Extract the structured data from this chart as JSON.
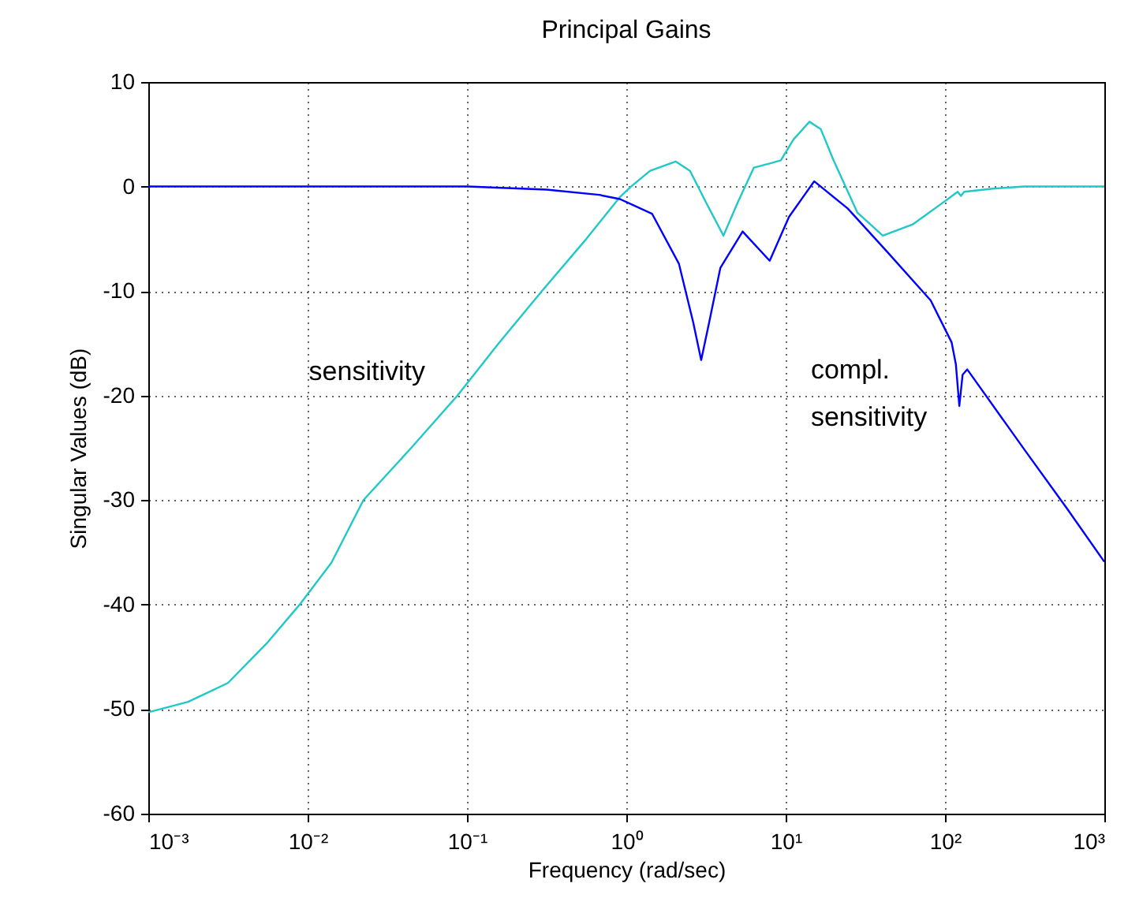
{
  "chart_data": {
    "type": "line",
    "title": "Principal Gains",
    "xlabel": "Frequency (rad/sec)",
    "ylabel": "Singular Values (dB)",
    "log": "x",
    "grid": true,
    "line_style": "solid",
    "marker": "none",
    "xlim": [
      0.001,
      1000
    ],
    "xticks": [
      {
        "value": 0.001,
        "label": "10⁻³"
      },
      {
        "value": 0.01,
        "label": "10⁻²"
      },
      {
        "value": 0.1,
        "label": "10⁻¹"
      },
      {
        "value": 1,
        "label": "10⁰"
      },
      {
        "value": 10,
        "label": "10¹"
      },
      {
        "value": 100,
        "label": "10²"
      },
      {
        "value": 1000,
        "label": "10³"
      }
    ],
    "ylim": [
      -60,
      10
    ],
    "yticks": [
      -60,
      -50,
      -40,
      -30,
      -20,
      -10,
      0,
      10
    ],
    "series": [
      {
        "color": "#20c8c8",
        "x": [
          0.001,
          0.00178,
          0.00316,
          0.00562,
          0.00891,
          0.0141,
          0.0224,
          0.0447,
          0.0871,
          0.158,
          0.295,
          0.562,
          0.912,
          1.07,
          1.41,
          2.04,
          2.51,
          3.16,
          4.07,
          5.01,
          6.31,
          7.94,
          9.33,
          11.2,
          14.1,
          16.6,
          20.0,
          28.2,
          40.7,
          63.1,
          100,
          120,
          126,
          132,
          200,
          316,
          1000
        ],
        "values": [
          -50.3,
          -49.3,
          -47.5,
          -43.6,
          -40,
          -36,
          -30,
          -25,
          -20,
          -15,
          -10,
          -5,
          -1,
          0,
          1.5,
          2.4,
          1.5,
          -1.5,
          -4.7,
          -1.5,
          1.8,
          2.2,
          2.5,
          4.5,
          6.2,
          5.5,
          2.5,
          -2.5,
          -4.7,
          -3.6,
          -1.4,
          -0.5,
          -0.9,
          -0.5,
          -0.2,
          0,
          0
        ]
      },
      {
        "color": "#0000ff",
        "x": [
          0.001,
          0.1,
          0.316,
          0.676,
          0.912,
          1.45,
          2.14,
          2.63,
          2.95,
          3.31,
          3.89,
          5.37,
          7.94,
          10.5,
          15.1,
          24.5,
          43.7,
          81.3,
          110,
          117,
          123,
          129,
          138,
          316,
          589,
          1000
        ],
        "values": [
          0,
          0,
          -0.3,
          -0.8,
          -1.2,
          -2.6,
          -7.4,
          -13,
          -16.6,
          -13,
          -7.8,
          -4.3,
          -7.1,
          -2.9,
          0.5,
          -2.1,
          -6.3,
          -10.9,
          -14.9,
          -17,
          -21,
          -18,
          -17.5,
          -25.2,
          -30.9,
          -35.9
        ]
      }
    ],
    "annotations": [
      "sensitivity",
      "compl. sensitivity"
    ]
  }
}
